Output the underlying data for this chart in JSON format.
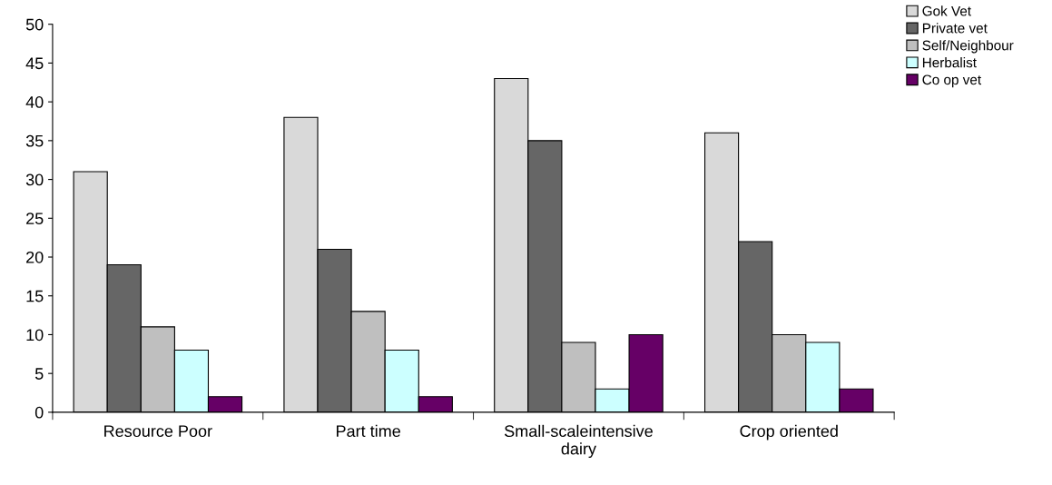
{
  "chart_data": {
    "type": "bar",
    "categories": [
      "Resource Poor",
      "Part time",
      "Small-scaleintensive dairy",
      "Crop oriented"
    ],
    "series": [
      {
        "name": "Gok Vet",
        "color": "#d9d9d9",
        "values": [
          31,
          38,
          43,
          36
        ]
      },
      {
        "name": "Private vet",
        "color": "#666666",
        "values": [
          19,
          21,
          35,
          22
        ]
      },
      {
        "name": "Self/Neighbour",
        "color": "#bfbfbf",
        "values": [
          11,
          13,
          9,
          10
        ]
      },
      {
        "name": "Herbalist",
        "color": "#ccffff",
        "values": [
          8,
          8,
          3,
          9
        ]
      },
      {
        "name": "Co op vet",
        "color": "#660066",
        "values": [
          2,
          2,
          10,
          3
        ]
      }
    ],
    "ylim": [
      0,
      50
    ],
    "yticks": [
      0,
      5,
      10,
      15,
      20,
      25,
      30,
      35,
      40,
      45,
      50
    ],
    "grid": false,
    "legend": "top right"
  }
}
